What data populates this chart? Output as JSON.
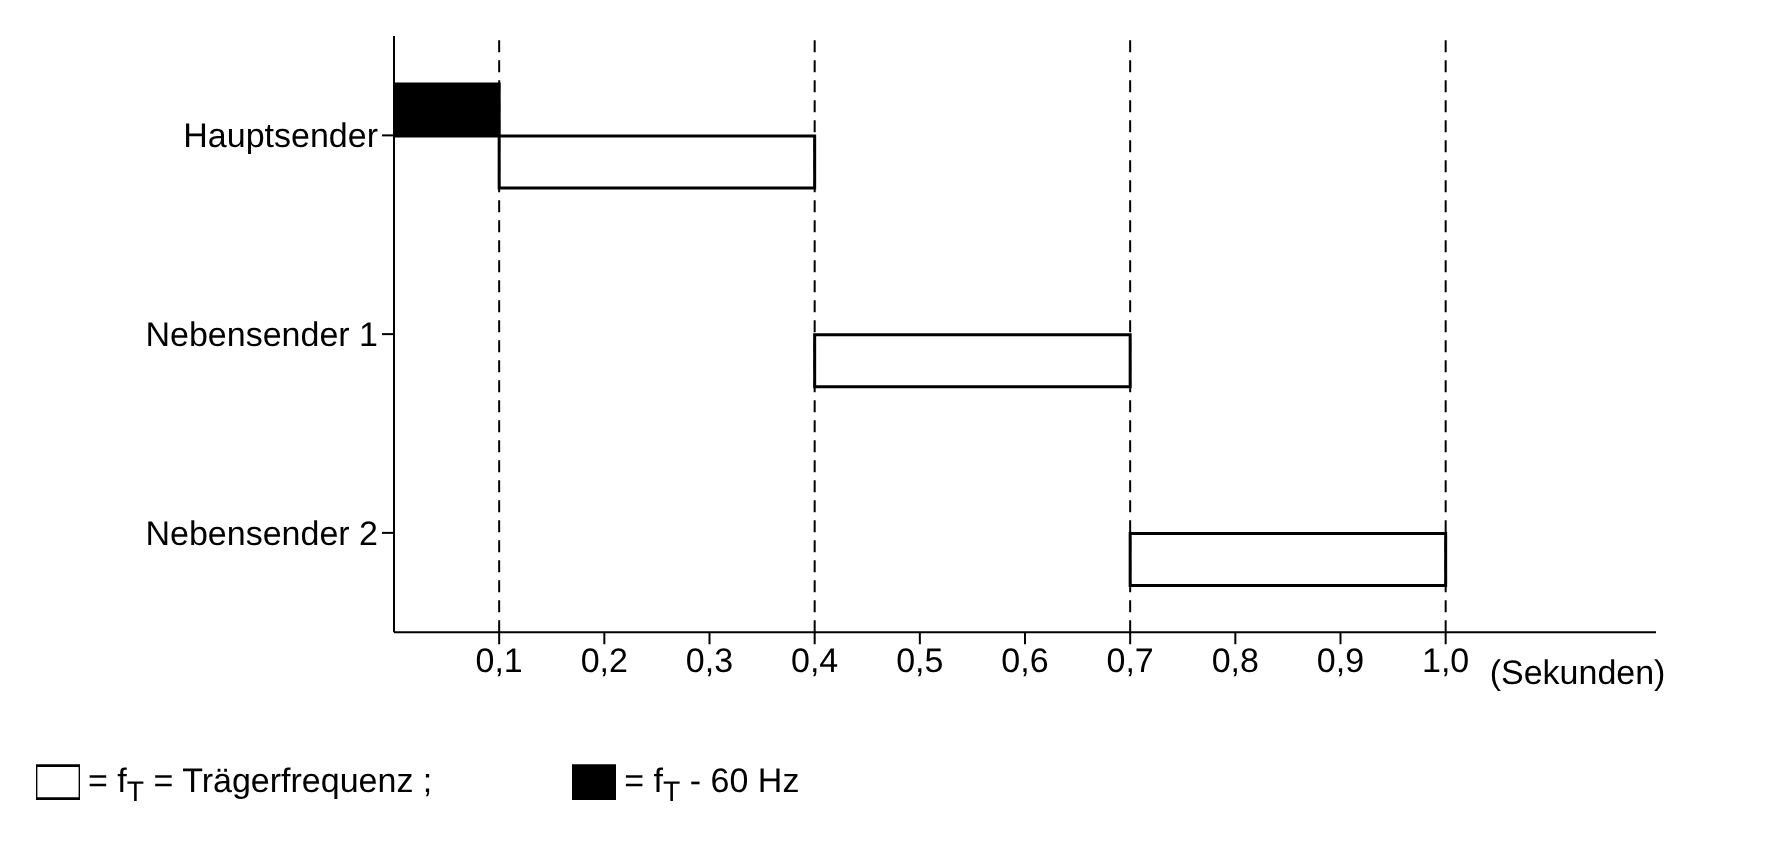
{
  "chart_data": {
    "type": "bar",
    "orientation": "horizontal",
    "categories": [
      "Hauptsender",
      "Nebensender 1",
      "Nebensender 2"
    ],
    "series": [
      {
        "name": "= f$_{T}$ - 60 Hz",
        "color": "#000000",
        "values": [
          0.1,
          null,
          null
        ],
        "base": [
          0,
          null,
          null
        ]
      },
      {
        "name": "= f$_{T}$ = Trägerfrequenz ;",
        "color": "#ffffff",
        "values": [
          0.3,
          0.3,
          0.3
        ],
        "base": [
          0.1,
          0.4,
          0.7
        ]
      }
    ],
    "xlabel": "(Sekunden)",
    "xlim": [
      0,
      1.2
    ],
    "xticks": [
      {
        "value": 0.1,
        "label": "0,1"
      },
      {
        "value": 0.2,
        "label": "0,2"
      },
      {
        "value": 0.3,
        "label": "0,3"
      },
      {
        "value": 0.4,
        "label": "0,4"
      },
      {
        "value": 0.5,
        "label": "0,5"
      },
      {
        "value": 0.6,
        "label": "0,6"
      },
      {
        "value": 0.7,
        "label": "0,7"
      },
      {
        "value": 0.8,
        "label": "0,8"
      },
      {
        "value": 0.9,
        "label": "0,9"
      },
      {
        "value": 1.0,
        "label": "1,0"
      }
    ],
    "ref_lines": [
      {
        "axis": "x",
        "value": 0.1,
        "color": "#000000",
        "line_style": "dashed"
      },
      {
        "axis": "x",
        "value": 0.4,
        "color": "#000000",
        "line_style": "dashed"
      },
      {
        "axis": "x",
        "value": 0.7,
        "color": "#000000",
        "line_style": "dashed"
      },
      {
        "axis": "x",
        "value": 1.0,
        "color": "#000000",
        "line_style": "dashed"
      }
    ],
    "grid": false,
    "legend": "bottom"
  }
}
